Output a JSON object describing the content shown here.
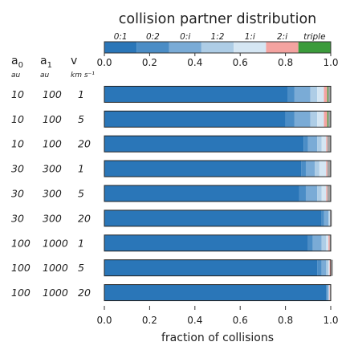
{
  "chart_data": {
    "type": "bar",
    "orientation": "horizontal",
    "stacked": true,
    "title": "collision partner distribution",
    "xlabel": "fraction of collisions",
    "xlim": [
      0.0,
      1.0
    ],
    "xticks": [
      "0.0",
      "0.2",
      "0.4",
      "0.6",
      "0.8",
      "1.0"
    ],
    "column_headers": [
      {
        "name": "a",
        "sub": "0",
        "unit": "au"
      },
      {
        "name": "a",
        "sub": "1",
        "unit": "au"
      },
      {
        "name": "v",
        "sub": "",
        "unit": "km s⁻¹"
      }
    ],
    "rows": [
      {
        "a0": "10",
        "a1": "100",
        "v": "1"
      },
      {
        "a0": "10",
        "a1": "100",
        "v": "5"
      },
      {
        "a0": "10",
        "a1": "100",
        "v": "20"
      },
      {
        "a0": "30",
        "a1": "300",
        "v": "1"
      },
      {
        "a0": "30",
        "a1": "300",
        "v": "5"
      },
      {
        "a0": "30",
        "a1": "300",
        "v": "20"
      },
      {
        "a0": "100",
        "a1": "1000",
        "v": "1"
      },
      {
        "a0": "100",
        "a1": "1000",
        "v": "5"
      },
      {
        "a0": "100",
        "a1": "1000",
        "v": "20"
      }
    ],
    "series": [
      {
        "name": "0:1",
        "color": "#2a76b8",
        "values": [
          0.81,
          0.8,
          0.88,
          0.87,
          0.86,
          0.96,
          0.9,
          0.94,
          0.98
        ]
      },
      {
        "name": "0:2",
        "color": "#4b8dc6",
        "values": [
          0.03,
          0.04,
          0.02,
          0.02,
          0.03,
          0.01,
          0.02,
          0.02,
          0.005
        ]
      },
      {
        "name": "0:i",
        "color": "#7aabd6",
        "values": [
          0.07,
          0.07,
          0.04,
          0.04,
          0.05,
          0.02,
          0.04,
          0.02,
          0.005
        ]
      },
      {
        "name": "1:2",
        "color": "#aecde6",
        "values": [
          0.03,
          0.03,
          0.02,
          0.02,
          0.02,
          0.005,
          0.02,
          0.01,
          0.003
        ]
      },
      {
        "name": "1:i",
        "color": "#d5e6f3",
        "values": [
          0.03,
          0.03,
          0.02,
          0.03,
          0.02,
          0.003,
          0.01,
          0.005,
          0.002
        ]
      },
      {
        "name": "2:i",
        "color": "#f4a3a0",
        "values": [
          0.015,
          0.015,
          0.005,
          0.005,
          0.005,
          0.002,
          0.005,
          0.004,
          0.002
        ]
      },
      {
        "name": "triple",
        "color": "#3b9b3b",
        "values": [
          0.005,
          0.005,
          0.0,
          0.0,
          0.0,
          0.0,
          0.0,
          0.0,
          0.0
        ]
      },
      {
        "name": "",
        "color": "#a3a3a3",
        "values": [
          0.01,
          0.01,
          0.015,
          0.015,
          0.015,
          0.005,
          0.005,
          0.011,
          0.003
        ]
      }
    ]
  }
}
